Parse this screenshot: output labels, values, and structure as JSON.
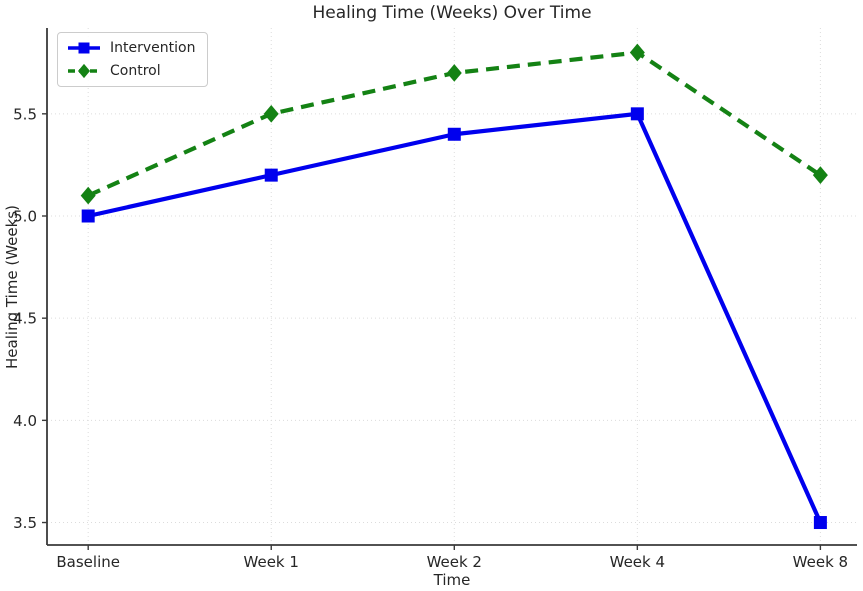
{
  "figure": {
    "background_color": "#ffffff",
    "text_color": "#262626",
    "grid_color": "#dcdcdc",
    "spine_color": "#3a3a3a"
  },
  "chart_data": {
    "type": "line",
    "title": "Healing Time (Weeks) Over Time",
    "xlabel": "Time",
    "ylabel": "Healing Time (Weeks)",
    "categories": [
      "Baseline",
      "Week 1",
      "Week 2",
      "Week 4",
      "Week 8"
    ],
    "yticks": [
      3.5,
      4.0,
      4.5,
      5.0,
      5.5
    ],
    "ylim": [
      3.39,
      5.92
    ],
    "grid": true,
    "legend_position": "upper left",
    "series": [
      {
        "name": "Intervention",
        "color": "#0000ee",
        "linestyle": "solid",
        "marker": "square",
        "values": [
          5.0,
          5.2,
          5.4,
          5.5,
          3.5
        ]
      },
      {
        "name": "Control",
        "color": "#148214",
        "linestyle": "dashed",
        "marker": "diamond",
        "values": [
          5.1,
          5.5,
          5.7,
          5.8,
          5.2
        ]
      }
    ]
  }
}
